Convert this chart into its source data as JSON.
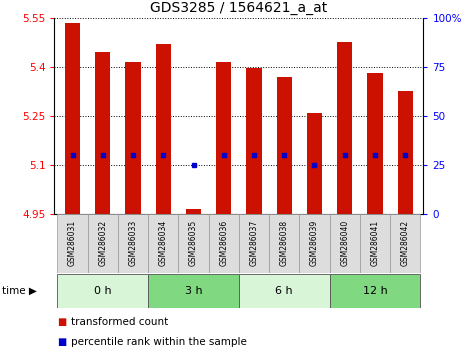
{
  "title": "GDS3285 / 1564621_a_at",
  "samples": [
    "GSM286031",
    "GSM286032",
    "GSM286033",
    "GSM286034",
    "GSM286035",
    "GSM286036",
    "GSM286037",
    "GSM286038",
    "GSM286039",
    "GSM286040",
    "GSM286041",
    "GSM286042"
  ],
  "bar_tops": [
    5.535,
    5.445,
    5.415,
    5.47,
    4.965,
    5.415,
    5.395,
    5.37,
    5.26,
    5.475,
    5.38,
    5.325
  ],
  "bar_bottom": 4.95,
  "percentile_values": [
    5.13,
    5.13,
    5.13,
    5.13,
    5.1,
    5.13,
    5.13,
    5.13,
    5.1,
    5.13,
    5.13,
    5.13
  ],
  "groups": [
    {
      "label": "0 h",
      "start": 0,
      "end": 3,
      "color": "#d8f5d8"
    },
    {
      "label": "3 h",
      "start": 3,
      "end": 6,
      "color": "#80d880"
    },
    {
      "label": "6 h",
      "start": 6,
      "end": 9,
      "color": "#d8f5d8"
    },
    {
      "label": "12 h",
      "start": 9,
      "end": 12,
      "color": "#80d880"
    }
  ],
  "ylim": [
    4.95,
    5.55
  ],
  "yticks": [
    4.95,
    5.1,
    5.25,
    5.4,
    5.55
  ],
  "ytick_labels": [
    "4.95",
    "5.1",
    "5.25",
    "5.4",
    "5.55"
  ],
  "right_ylim": [
    0,
    100
  ],
  "right_yticks": [
    0,
    25,
    50,
    75,
    100
  ],
  "right_ytick_labels": [
    "0",
    "25",
    "50",
    "75",
    "100%"
  ],
  "bar_color": "#cc1100",
  "percentile_color": "#0000cc",
  "legend_bar_label": "transformed count",
  "legend_pct_label": "percentile rank within the sample",
  "title_fontsize": 10,
  "tick_fontsize": 7.5,
  "sample_fontsize": 5.5,
  "group_fontsize": 8,
  "legend_fontsize": 7.5,
  "time_arrow": "time ▶"
}
